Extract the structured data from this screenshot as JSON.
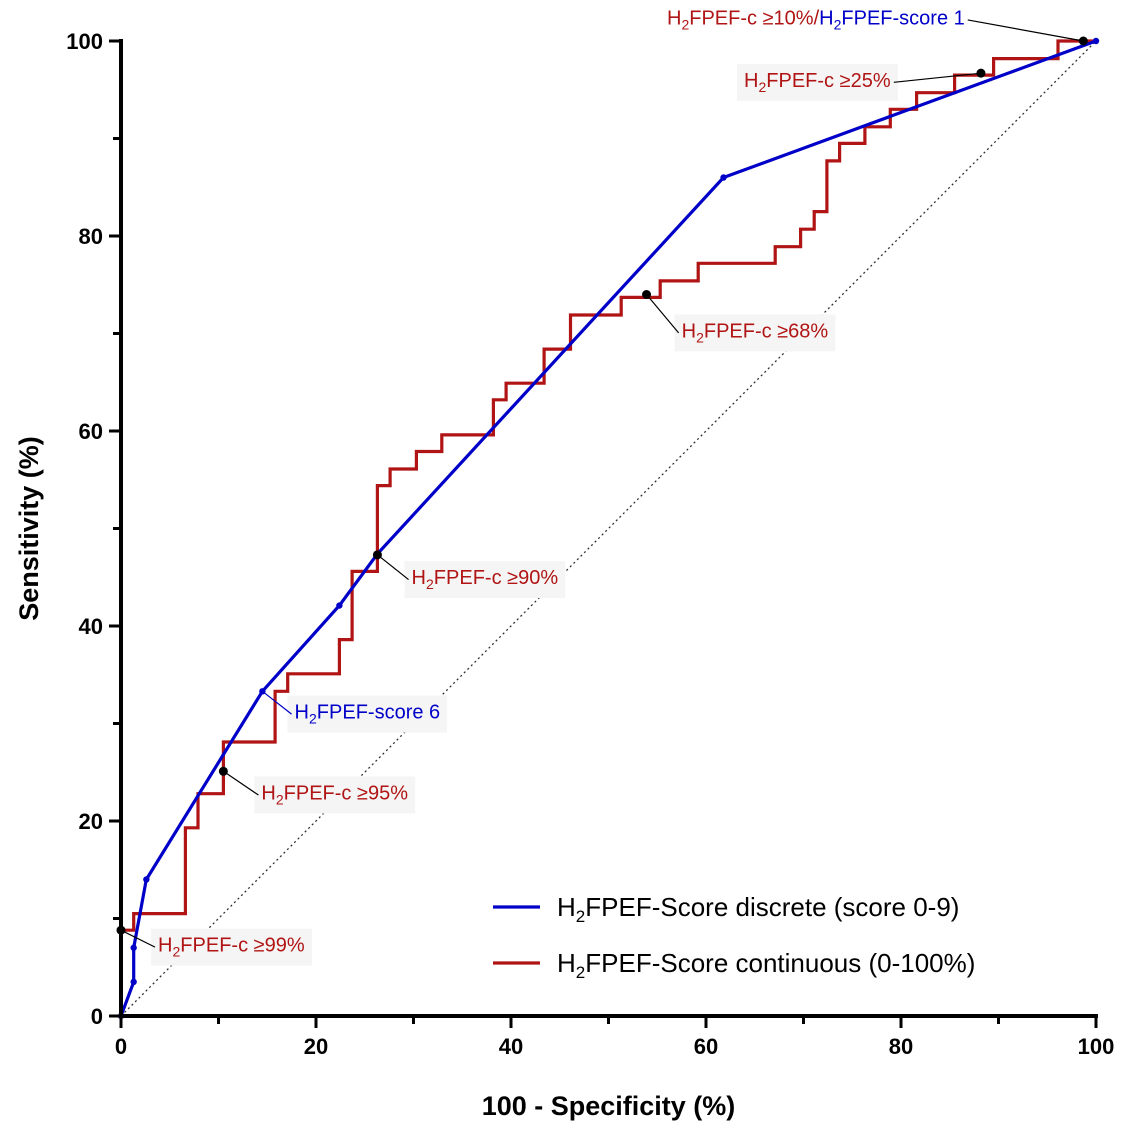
{
  "chart_data": {
    "type": "line",
    "xlabel": "100 - Specificity (%)",
    "ylabel": "Sensitivity (%)",
    "xlim": [
      0,
      100
    ],
    "ylim": [
      0,
      100
    ],
    "x_ticks": [
      "0",
      "20",
      "40",
      "60",
      "80",
      "100"
    ],
    "y_ticks": [
      "0",
      "20",
      "40",
      "60",
      "80",
      "100"
    ],
    "reference_line": {
      "x": [
        0,
        100
      ],
      "y": [
        0,
        100
      ],
      "style": "dotted"
    },
    "legend_position": "bottom-right",
    "colors": {
      "discrete": "#0000c8",
      "continuous": "#b01414"
    },
    "series": [
      {
        "name": "H2FPEF-Score discrete (score 0-9)",
        "style": "line-with-markers",
        "points": [
          [
            0,
            0
          ],
          [
            1.3,
            3.5
          ],
          [
            1.3,
            7
          ],
          [
            2.6,
            14
          ],
          [
            14.5,
            33.3
          ],
          [
            22.4,
            42.1
          ],
          [
            26.3,
            47.4
          ],
          [
            61.8,
            86
          ],
          [
            100,
            100
          ]
        ]
      },
      {
        "name": "H2FPEF-Score continuous (0-100%)",
        "style": "step",
        "points": [
          [
            0,
            0
          ],
          [
            0,
            8.8
          ],
          [
            1.3,
            8.8
          ],
          [
            1.3,
            10.5
          ],
          [
            6.6,
            10.5
          ],
          [
            6.6,
            19.3
          ],
          [
            7.9,
            19.3
          ],
          [
            7.9,
            22.8
          ],
          [
            10.5,
            22.8
          ],
          [
            10.5,
            28.1
          ],
          [
            15.8,
            28.1
          ],
          [
            15.8,
            33.3
          ],
          [
            17.1,
            33.3
          ],
          [
            17.1,
            35.1
          ],
          [
            22.4,
            35.1
          ],
          [
            22.4,
            38.6
          ],
          [
            23.7,
            38.6
          ],
          [
            23.7,
            45.6
          ],
          [
            26.3,
            45.6
          ],
          [
            26.3,
            54.4
          ],
          [
            27.6,
            54.4
          ],
          [
            27.6,
            56.1
          ],
          [
            30.3,
            56.1
          ],
          [
            30.3,
            57.9
          ],
          [
            32.9,
            57.9
          ],
          [
            32.9,
            59.6
          ],
          [
            38.2,
            59.6
          ],
          [
            38.2,
            63.2
          ],
          [
            39.5,
            63.2
          ],
          [
            39.5,
            64.9
          ],
          [
            43.4,
            64.9
          ],
          [
            43.4,
            68.4
          ],
          [
            46.1,
            68.4
          ],
          [
            46.1,
            71.9
          ],
          [
            51.3,
            71.9
          ],
          [
            51.3,
            73.7
          ],
          [
            55.3,
            73.7
          ],
          [
            55.3,
            75.4
          ],
          [
            59.2,
            75.4
          ],
          [
            59.2,
            77.2
          ],
          [
            67.1,
            77.2
          ],
          [
            67.1,
            78.9
          ],
          [
            69.7,
            78.9
          ],
          [
            69.7,
            80.7
          ],
          [
            71.1,
            80.7
          ],
          [
            71.1,
            82.5
          ],
          [
            72.4,
            82.5
          ],
          [
            72.4,
            87.7
          ],
          [
            73.7,
            87.7
          ],
          [
            73.7,
            89.5
          ],
          [
            76.3,
            89.5
          ],
          [
            76.3,
            91.2
          ],
          [
            78.9,
            91.2
          ],
          [
            78.9,
            93
          ],
          [
            81.6,
            93
          ],
          [
            81.6,
            94.7
          ],
          [
            85.5,
            94.7
          ],
          [
            85.5,
            96.5
          ],
          [
            89.5,
            96.5
          ],
          [
            89.5,
            98.2
          ],
          [
            96.1,
            98.2
          ],
          [
            96.1,
            100
          ],
          [
            100,
            100
          ]
        ]
      }
    ],
    "annotations": [
      {
        "base": "H",
        "sub": "2",
        "rest": "FPEF-c ≥99%",
        "color": "red",
        "point": [
          0,
          8.8
        ],
        "label": [
          3.8,
          6.6
        ],
        "box": true
      },
      {
        "base": "H",
        "sub": "2",
        "rest": "FPEF-c ≥95%",
        "color": "red",
        "point": [
          10.5,
          25.1
        ],
        "label": [
          14.4,
          22.2
        ],
        "box": true
      },
      {
        "base": "H",
        "sub": "2",
        "rest": "FPEF-score 6",
        "color": "blue",
        "point": [
          14.5,
          33.3
        ],
        "label": [
          17.8,
          30.5
        ],
        "box": true
      },
      {
        "base": "H",
        "sub": "2",
        "rest": "FPEF-c ≥90%",
        "color": "red",
        "point": [
          26.3,
          47.3
        ],
        "label": [
          29.8,
          44.3
        ],
        "box": true
      },
      {
        "base": "H",
        "sub": "2",
        "rest": "FPEF-c ≥68%",
        "color": "red",
        "point": [
          53.9,
          74
        ],
        "label": [
          57.5,
          69.6
        ],
        "box": true
      },
      {
        "base": "H",
        "sub": "2",
        "rest": "FPEF-c ≥25%",
        "color": "red",
        "point": [
          88.2,
          96.7
        ],
        "label": [
          63.9,
          95.3
        ],
        "box": true
      },
      {
        "base": "H",
        "sub": "2",
        "rest": "FPEF-c ≥10%/",
        "base2": "H",
        "sub2": "2",
        "rest2": "FPEF-score 1",
        "color": "red",
        "color2": "blue",
        "point": [
          98.7,
          100
        ],
        "label": [
          56,
          101.7
        ],
        "box": false
      }
    ]
  }
}
